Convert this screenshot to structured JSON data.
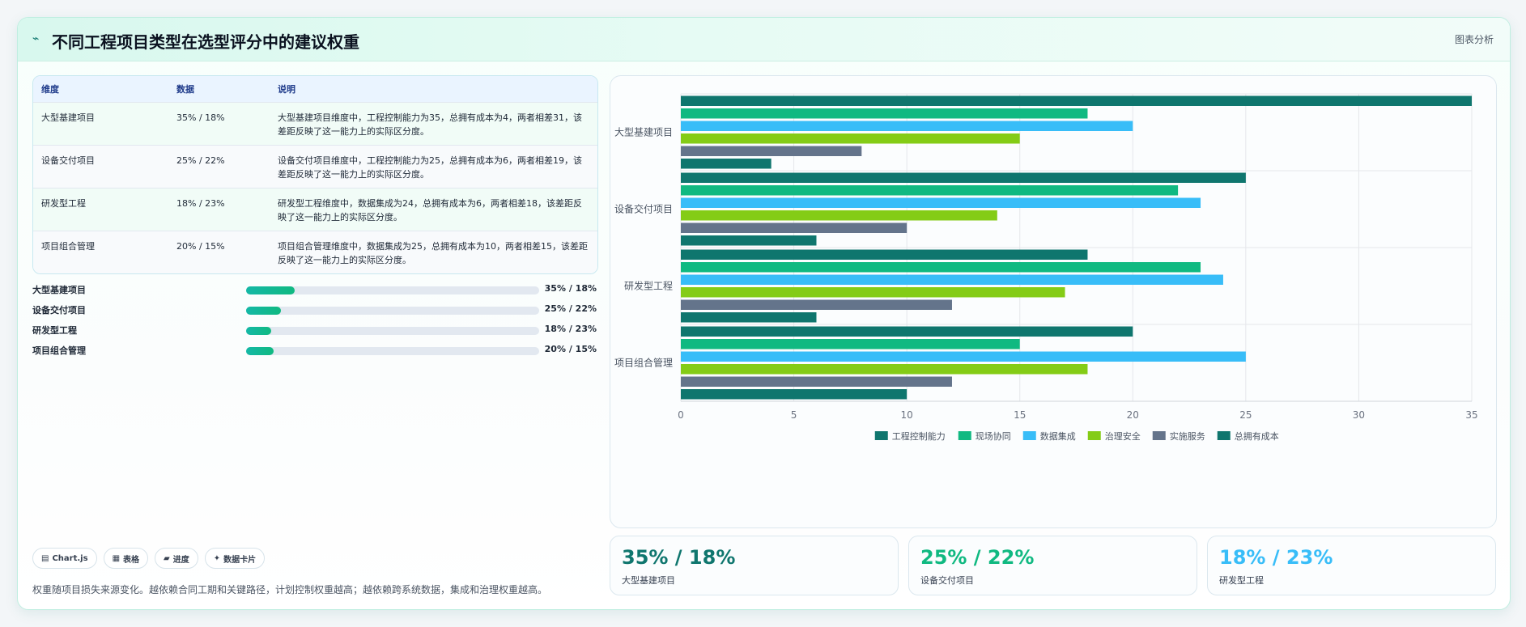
{
  "header": {
    "logo_glyph": "⌁",
    "title": "不同工程项目类型在选型评分中的建议权重",
    "action_label": "图表分析"
  },
  "table": {
    "columns": [
      "维度",
      "数据",
      "说明"
    ],
    "rows": [
      {
        "name": "大型基建项目",
        "value": "35% / 18%",
        "desc": "大型基建项目维度中，工程控制能力为35，总拥有成本为4，两者相差31，该差距反映了这一能力上的实际区分度。"
      },
      {
        "name": "设备交付项目",
        "value": "25% / 22%",
        "desc": "设备交付项目维度中，工程控制能力为25，总拥有成本为6，两者相差19，该差距反映了这一能力上的实际区分度。"
      },
      {
        "name": "研发型工程",
        "value": "18% / 23%",
        "desc": "研发型工程维度中，数据集成为24，总拥有成本为6，两者相差18，该差距反映了这一能力上的实际区分度。"
      },
      {
        "name": "项目组合管理",
        "value": "20% / 15%",
        "desc": "项目组合管理维度中，数据集成为25，总拥有成本为10，两者相差15，该差距反映了这一能力上的实际区分度。"
      }
    ]
  },
  "progress": [
    {
      "label": "大型基建项目",
      "value": "35% / 18%",
      "fill": 0.165
    },
    {
      "label": "设备交付项目",
      "value": "25% / 22%",
      "fill": 0.118
    },
    {
      "label": "研发型工程",
      "value": "18% / 23%",
      "fill": 0.085
    },
    {
      "label": "项目组合管理",
      "value": "20% / 15%",
      "fill": 0.094
    }
  ],
  "chips": [
    {
      "icon": "▤",
      "label": "Chart.js"
    },
    {
      "icon": "▦",
      "label": "表格"
    },
    {
      "icon": "▰",
      "label": "进度"
    },
    {
      "icon": "✦",
      "label": "数据卡片"
    }
  ],
  "footnote": "权重随项目损失来源变化。越依赖合同工期和关键路径，计划控制权重越高；越依赖跨系统数据，集成和治理权重越高。",
  "kpis": [
    {
      "value": "35% / 18%",
      "label": "大型基建项目",
      "color": "#0f766e"
    },
    {
      "value": "25% / 22%",
      "label": "设备交付项目",
      "color": "#10b981"
    },
    {
      "value": "18% / 23%",
      "label": "研发型工程",
      "color": "#38bdf8"
    }
  ],
  "chart_data": {
    "type": "bar",
    "orientation": "horizontal",
    "categories": [
      "大型基建项目",
      "设备交付项目",
      "研发型工程",
      "项目组合管理"
    ],
    "series": [
      {
        "name": "工程控制能力",
        "color": "#0f766e",
        "values": [
          35,
          25,
          18,
          20
        ]
      },
      {
        "name": "现场协同",
        "color": "#10b981",
        "values": [
          18,
          22,
          23,
          15
        ]
      },
      {
        "name": "数据集成",
        "color": "#38bdf8",
        "values": [
          20,
          23,
          24,
          25
        ]
      },
      {
        "name": "治理安全",
        "color": "#84cc16",
        "values": [
          15,
          14,
          17,
          18
        ]
      },
      {
        "name": "实施服务",
        "color": "#64748b",
        "values": [
          8,
          10,
          12,
          12
        ]
      },
      {
        "name": "总拥有成本",
        "color": "#0f766e",
        "values": [
          4,
          6,
          6,
          10
        ]
      }
    ],
    "xlim": [
      0,
      35
    ],
    "xticks": [
      0,
      5,
      10,
      15,
      20,
      25,
      30,
      35
    ],
    "grid": true,
    "legend": "bottom"
  }
}
